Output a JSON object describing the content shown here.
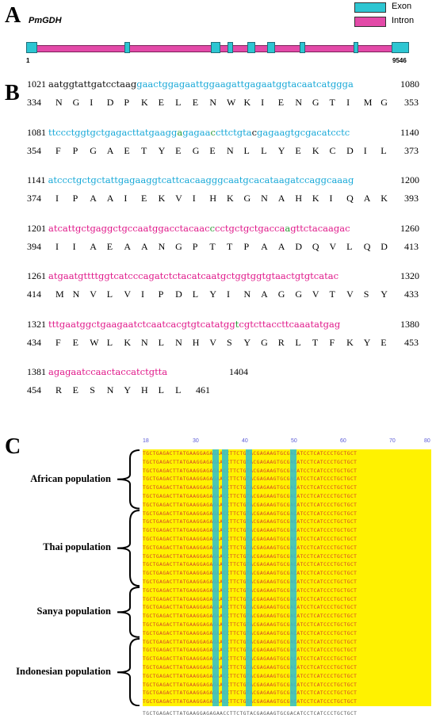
{
  "panel_a": {
    "letter": "A",
    "gene_name": "PmGDH",
    "legend": {
      "exon_label": "Exon",
      "intron_label": "Intron",
      "exon_color": "#2dc6d2",
      "intron_color": "#e34aa8"
    },
    "start_label": "1",
    "end_label": "9546"
  },
  "panel_b": {
    "letter": "B",
    "rows": [
      {
        "nt_start": "1021",
        "nt_end": "1080",
        "aa_start": "334",
        "aa_end": "353",
        "seq": [
          {
            "t": "aatggtattgatcctaag",
            "c": "black"
          },
          {
            "t": "gaactggagaattggaagattgagaatggtacaatcatggga",
            "c": "cyan"
          }
        ],
        "aa": "N G I D P K E L E N W K I E N G T I M G"
      },
      {
        "nt_start": "1081",
        "nt_end": "1140",
        "aa_start": "354",
        "aa_end": "373",
        "seq": [
          {
            "t": "ttccctggtgctgagacttatgaagg",
            "c": "cyan"
          },
          {
            "t": "a",
            "c": "green"
          },
          {
            "t": "gagaa",
            "c": "cyan"
          },
          {
            "t": "c",
            "c": "green"
          },
          {
            "t": "cttctgta",
            "c": "cyan"
          },
          {
            "t": "c",
            "c": "black"
          },
          {
            "t": "gagaagtgcgacatcctc",
            "c": "cyan"
          }
        ],
        "aa": "F P G A E T Y E G E N L L Y E K C D I L"
      },
      {
        "nt_start": "1141",
        "nt_end": "1200",
        "aa_start": "374",
        "aa_end": "393",
        "seq": [
          {
            "t": "atccctgctgctattgagaaggtcattcacaagggcaatgcacataagatccaggcaaag",
            "c": "cyan"
          }
        ],
        "aa": "I P A A I E K V I H K G N A H K I Q A K"
      },
      {
        "nt_start": "1201",
        "nt_end": "1260",
        "aa_start": "394",
        "aa_end": "413",
        "seq": [
          {
            "t": "atcattgctgaggctgccaatggacctacaac",
            "c": "pink"
          },
          {
            "t": "c",
            "c": "green"
          },
          {
            "t": "cctgctgctgacca",
            "c": "pink"
          },
          {
            "t": "a",
            "c": "green"
          },
          {
            "t": "gttctacaagac",
            "c": "pink"
          }
        ],
        "aa": "I I A E A A N G P T T P A A D Q V L Q D"
      },
      {
        "nt_start": "1261",
        "nt_end": "1320",
        "aa_start": "414",
        "aa_end": "433",
        "seq": [
          {
            "t": "atgaatgttttggtcatcccagatctctacatcaatgctggtggtgtaactgtgtcatac",
            "c": "pink"
          }
        ],
        "aa": "M N V L V I P D L Y I N A G G V T V S Y"
      },
      {
        "nt_start": "1321",
        "nt_end": "1380",
        "aa_start": "434",
        "aa_end": "453",
        "seq": [
          {
            "t": "tttgaatggctgaagaatctcaatcacgtgtcatatgg",
            "c": "pink"
          },
          {
            "t": "t",
            "c": "green"
          },
          {
            "t": "cgtcttaccttcaaatatgag",
            "c": "pink"
          }
        ],
        "aa": "F E W L K N L N H V S Y G R L T F K Y E"
      },
      {
        "nt_start": "1381",
        "nt_end": "1404",
        "aa_start": "454",
        "aa_end": "461",
        "seq": [
          {
            "t": "agagaatccaactaccatctgtta",
            "c": "pink"
          }
        ],
        "aa": "R E S N Y H L L"
      }
    ]
  },
  "panel_c": {
    "letter": "C",
    "ruler": [
      "18",
      "30",
      "40",
      "50",
      "60",
      "70",
      "80"
    ],
    "sequence": "TGCTGAGACTTATGAAGGAGAGAACCTTCTGTACGAGAAGTGCGACATCCTCATCCCTGCTGCT",
    "populations": [
      {
        "label": "African population",
        "rows": 7
      },
      {
        "label": "Thai population",
        "rows": 9
      },
      {
        "label": "Sanya population",
        "rows": 6
      },
      {
        "label": "Indonesian population",
        "rows": 8
      }
    ],
    "consensus": "TGCTGAGACTTATGAAGGAGAGAACCTTCTGTACGAGAAGTGCGACATCCTCATCCCTGCTGCT"
  }
}
